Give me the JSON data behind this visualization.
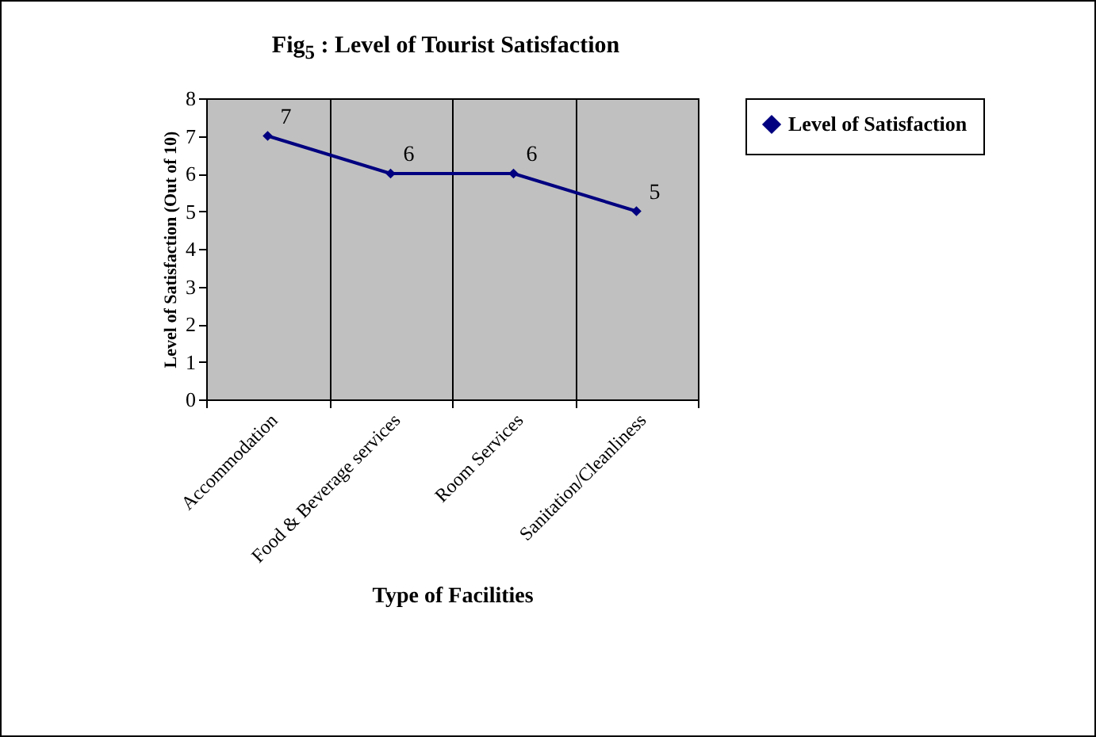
{
  "chart_data": {
    "type": "line",
    "title": "Fig$_{5}$ : Level of  Tourist Satisfaction",
    "xlabel": "Type of Facilities",
    "ylabel": "Level of Satisfaction (Out of 10)",
    "categories": [
      "Accommodation",
      "Food & Beverage services",
      "Room Services",
      "Sanitation/Cleanliness"
    ],
    "series": [
      {
        "name": "Level of Satisfaction",
        "color": "#000080",
        "values": [
          7,
          6,
          6,
          5
        ]
      }
    ],
    "ylim": [
      0,
      8
    ],
    "yticks": [
      0,
      1,
      2,
      3,
      4,
      5,
      6,
      7,
      8
    ],
    "grid": "x",
    "legend": "right",
    "marker": "diamond",
    "data_labels": true
  }
}
